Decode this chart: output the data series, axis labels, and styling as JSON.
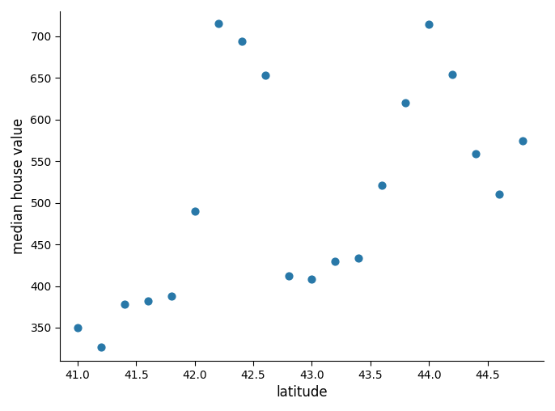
{
  "latitudes": [
    41.0,
    41.2,
    41.4,
    41.6,
    41.8,
    42.0,
    42.2,
    42.4,
    42.6,
    42.8,
    43.0,
    43.2,
    43.4,
    43.6,
    43.8,
    44.0,
    44.2,
    44.4,
    44.6,
    44.8
  ],
  "house_values": [
    350,
    327,
    378,
    382,
    388,
    490,
    715,
    694,
    653,
    412,
    408,
    430,
    434,
    521,
    620,
    714,
    654,
    559,
    510,
    574
  ],
  "dot_color": "#2878a8",
  "dot_size": 40,
  "xlabel": "latitude",
  "ylabel": "median house value",
  "xlim": [
    40.85,
    44.98
  ],
  "ylim": [
    310,
    730
  ],
  "xticks": [
    41.0,
    41.5,
    42.0,
    42.5,
    43.0,
    43.5,
    44.0,
    44.5
  ],
  "yticks": [
    350,
    400,
    450,
    500,
    550,
    600,
    650,
    700
  ],
  "xlabel_fontsize": 12,
  "ylabel_fontsize": 12,
  "tick_labelsize": 10,
  "background_color": "#ffffff",
  "figwidth": 6.86,
  "figheight": 5.08,
  "dpi": 100
}
